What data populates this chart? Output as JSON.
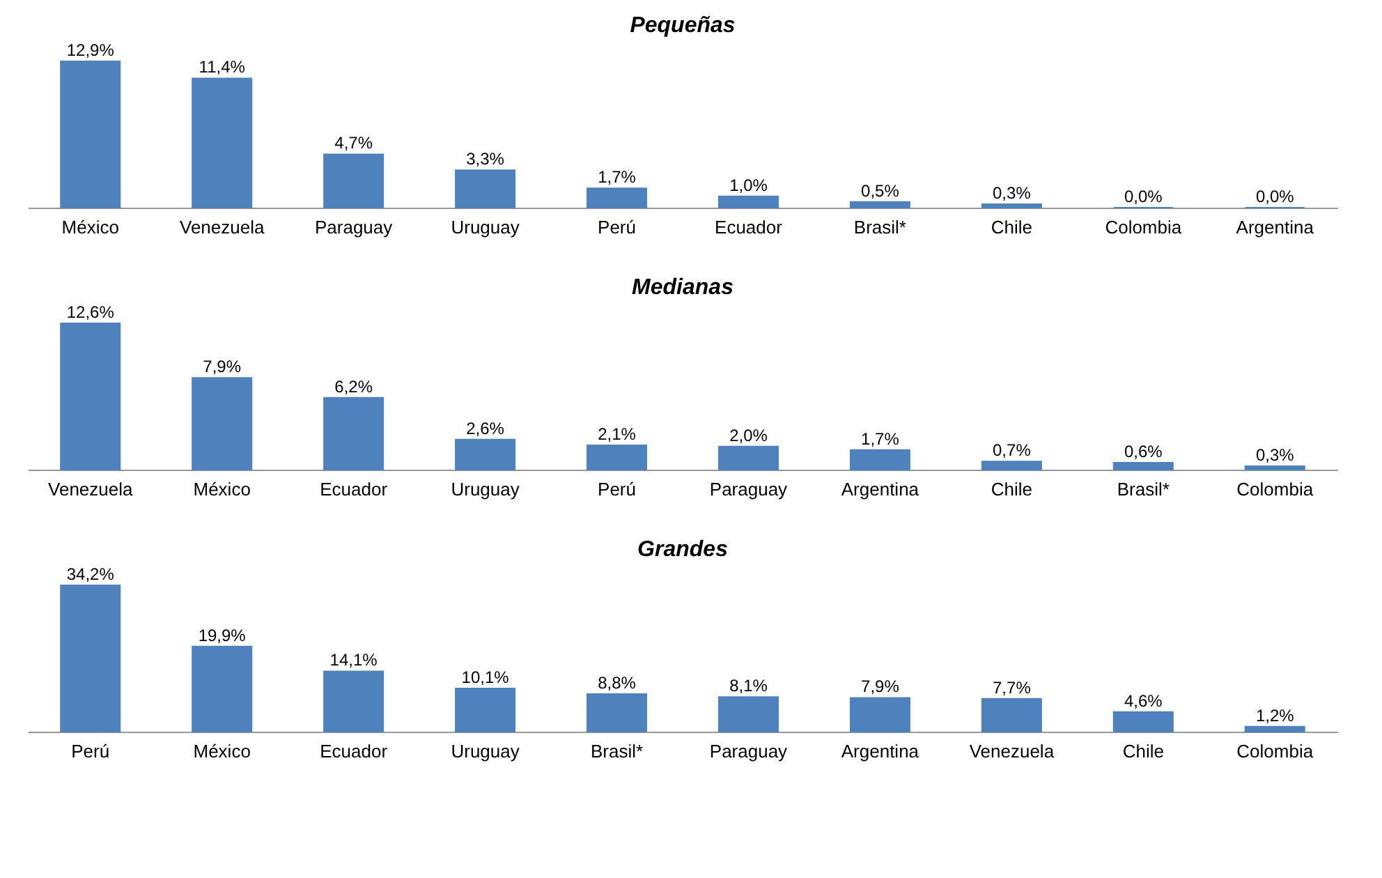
{
  "chart_data": [
    {
      "type": "bar",
      "title": "Pequeñas",
      "categories": [
        "México",
        "Venezuela",
        "Paraguay",
        "Uruguay",
        "Perú",
        "Ecuador",
        "Brasil*",
        "Chile",
        "Colombia",
        "Argentina"
      ],
      "values": [
        12.9,
        11.4,
        4.7,
        3.3,
        1.7,
        1.0,
        0.5,
        0.3,
        0.0,
        0.0
      ],
      "color": "#4f81bd",
      "value_labels": [
        "12,9%",
        "11,4%",
        "4,7%",
        "3,3%",
        "1,7%",
        "1,0%",
        "0,5%",
        "0,3%",
        "0,0%",
        "0,0%"
      ]
    },
    {
      "type": "bar",
      "title": "Medianas",
      "categories": [
        "Venezuela",
        "México",
        "Ecuador",
        "Uruguay",
        "Perú",
        "Paraguay",
        "Argentina",
        "Chile",
        "Brasil*",
        "Colombia"
      ],
      "values": [
        12.6,
        7.9,
        6.2,
        2.6,
        2.1,
        2.0,
        1.7,
        0.7,
        0.6,
        0.3
      ],
      "color": "#4f81bd",
      "value_labels": [
        "12,6%",
        "7,9%",
        "6,2%",
        "2,6%",
        "2,1%",
        "2,0%",
        "1,7%",
        "0,7%",
        "0,6%",
        "0,3%"
      ]
    },
    {
      "type": "bar",
      "title": "Grandes",
      "categories": [
        "Perú",
        "México",
        "Ecuador",
        "Uruguay",
        "Brasil*",
        "Paraguay",
        "Argentina",
        "Venezuela",
        "Chile",
        "Colombia"
      ],
      "values": [
        34.2,
        19.9,
        14.1,
        10.1,
        8.8,
        8.1,
        7.9,
        7.7,
        4.6,
        1.2
      ],
      "color": "#4f81bd",
      "value_labels": [
        "34,2%",
        "19,9%",
        "14,1%",
        "10,1%",
        "8,8%",
        "8,1%",
        "7,9%",
        "7,7%",
        "4,6%",
        "1,2%"
      ]
    }
  ]
}
